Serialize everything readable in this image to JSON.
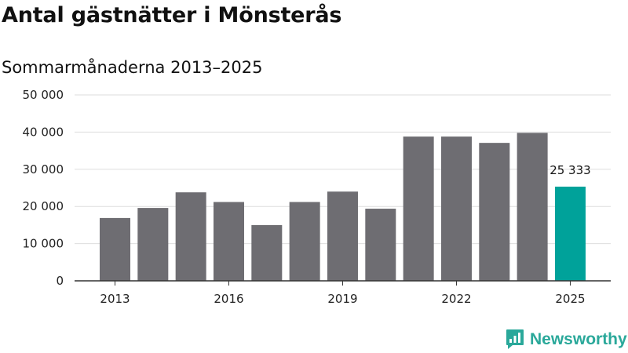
{
  "title": "Antal gästnätter i Mönsterås",
  "subtitle": "Sommarmånaderna 2013–2025",
  "brand": {
    "name": "Newsworthy",
    "color": "#2aa89a",
    "icon": "newsworthy-logo-icon"
  },
  "colors": {
    "bar": "#6e6d72",
    "highlight": "#00a29a",
    "grid": "#dddddd",
    "axis": "#333333"
  },
  "chart_data": {
    "type": "bar",
    "x": [
      2013,
      2014,
      2015,
      2016,
      2017,
      2018,
      2019,
      2020,
      2021,
      2022,
      2023,
      2024,
      2025
    ],
    "values": [
      16900,
      19600,
      23800,
      21200,
      15000,
      21200,
      24000,
      19400,
      38800,
      38800,
      37100,
      39800,
      25333
    ],
    "highlight_index": 12,
    "data_labels": [
      {
        "index": 12,
        "text": "25 333"
      }
    ],
    "x_tick_labels": [
      "2013",
      "2016",
      "2019",
      "2022",
      "2025"
    ],
    "y_tick_values": [
      0,
      10000,
      20000,
      30000,
      40000,
      50000
    ],
    "y_tick_labels": [
      "0",
      "10 000",
      "20 000",
      "30 000",
      "40 000",
      "50 000"
    ],
    "ylim": [
      0,
      50000
    ],
    "grid": true,
    "xlabel": "",
    "ylabel": ""
  }
}
